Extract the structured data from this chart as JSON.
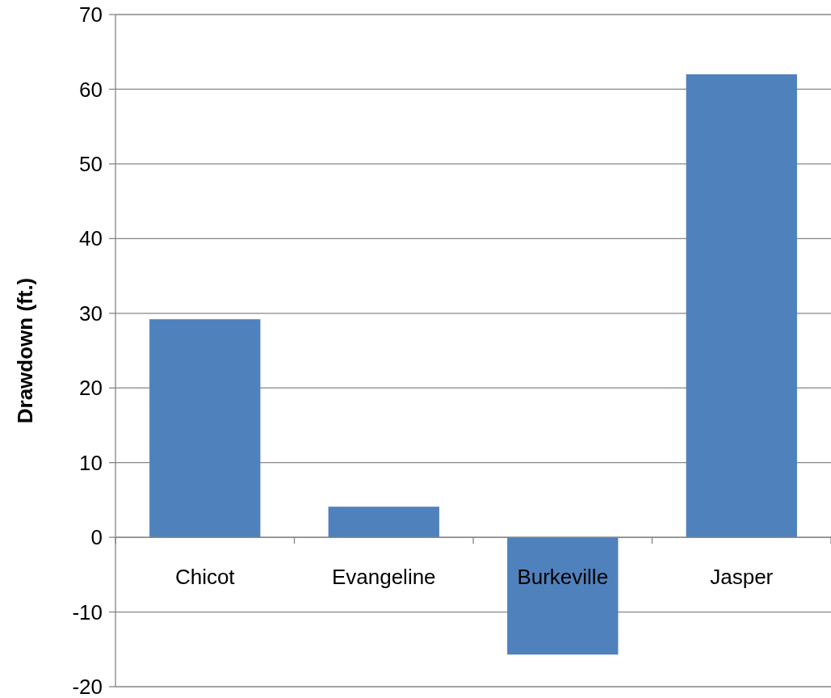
{
  "chart_data": {
    "type": "bar",
    "ylabel": "Drawdown (ft.)",
    "categories": [
      "Chicot",
      "Evangeline",
      "Burkeville",
      "Jasper"
    ],
    "values": [
      29.2,
      4.1,
      -15.7,
      62.0
    ],
    "color": "#4f81bd",
    "ylim": [
      -20,
      70
    ],
    "yticks": [
      -20,
      -10,
      0,
      10,
      20,
      30,
      40,
      50,
      60,
      70
    ],
    "grid": "y"
  }
}
